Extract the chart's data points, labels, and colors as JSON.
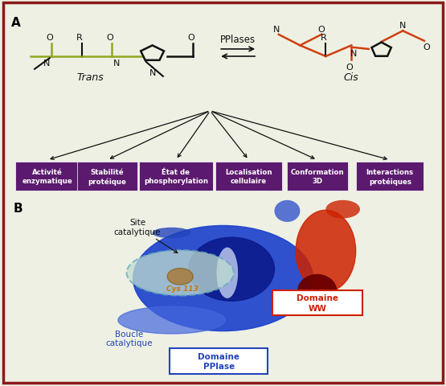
{
  "background_color": "#eef0e4",
  "border_color": "#8b1a1a",
  "panel_a_label": "A",
  "panel_b_label": "B",
  "pplases_label": "PPlases",
  "trans_label": "Trans",
  "cis_label": "Cis",
  "box_labels": [
    "Activité\nenzymatique",
    "Stabilité\nprotéique",
    "État de\nphosphorylation",
    "Localisation\ncellulaire",
    "Conformation\n3D",
    "Interactions\nprotéiques"
  ],
  "box_color": "#5b1a6e",
  "box_text_color": "#ffffff",
  "olive": "#8fa820",
  "orange": "#d04010",
  "black": "#111111",
  "site_catalytique": "Site\ncatalytique",
  "boucle_catalytique": "Boucle\ncatalytique",
  "domaine_pplase": "Domaine\nPPlase",
  "domaine_ww": "Domaine\nWW",
  "cys113": "Cys 113",
  "blue_label": "#2244bb",
  "red_label": "#cc2200",
  "orange_label": "#cc7700"
}
